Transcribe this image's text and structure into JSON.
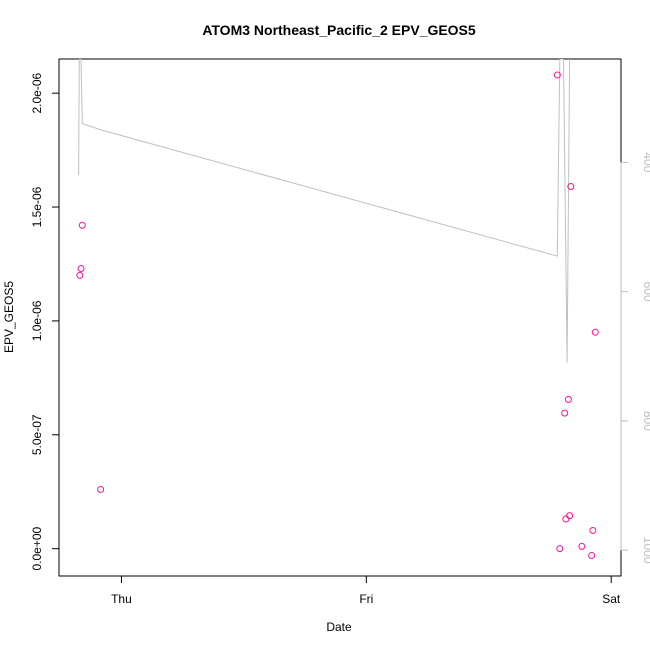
{
  "chart_data": {
    "type": "scatter",
    "title": "ATOM3 Northeast_Pacific_2 EPV_GEOS5",
    "xlabel": "Date",
    "ylabel": "EPV_GEOS5",
    "x_ticks": [
      {
        "label": "Thu",
        "value": 0
      },
      {
        "label": "Fri",
        "value": 1
      },
      {
        "label": "Sat",
        "value": 2
      }
    ],
    "x_range": [
      -0.255,
      2.04
    ],
    "y_ticks": [
      {
        "label": "0.0e+00",
        "value": 0
      },
      {
        "label": "5.0e-07",
        "value": 5e-07
      },
      {
        "label": "1.0e-06",
        "value": 1e-06
      },
      {
        "label": "1.5e-06",
        "value": 1.5e-06
      },
      {
        "label": "2.0e-06",
        "value": 2e-06
      }
    ],
    "y_range": [
      -1.2e-07,
      2.15e-06
    ],
    "y2_ticks": [
      {
        "label": "400",
        "value": 400
      },
      {
        "label": "600",
        "value": 600
      },
      {
        "label": "800",
        "value": 800
      },
      {
        "label": "1000",
        "value": 1000
      }
    ],
    "y2_range": [
      1040,
      240
    ],
    "point_color": "#ff1493",
    "line_color": "#c0c0c0",
    "series": [
      {
        "values": [
          {
            "x": -0.17,
            "y": 1.2e-06
          },
          {
            "x": -0.165,
            "y": 1.23e-06
          },
          {
            "x": -0.16,
            "y": 1.42e-06
          },
          {
            "x": -0.085,
            "y": 2.6e-07
          },
          {
            "x": 1.78,
            "y": 2.08e-06
          },
          {
            "x": 1.79,
            "y": 0.0
          },
          {
            "x": 1.81,
            "y": 5.95e-07
          },
          {
            "x": 1.815,
            "y": 1.3e-07
          },
          {
            "x": 1.825,
            "y": 6.55e-07
          },
          {
            "x": 1.83,
            "y": 1.45e-07
          },
          {
            "x": 1.835,
            "y": 1.59e-06
          },
          {
            "x": 1.88,
            "y": 1e-08
          },
          {
            "x": 1.92,
            "y": -3e-08
          },
          {
            "x": 1.925,
            "y": 8e-08
          },
          {
            "x": 1.935,
            "y": 9.5e-07
          }
        ]
      },
      {
        "axis": "right",
        "values": [
          {
            "x": -0.175,
            "y": 420
          },
          {
            "x": -0.172,
            "y": 240
          },
          {
            "x": -0.165,
            "y": 240
          },
          {
            "x": -0.16,
            "y": 340
          },
          {
            "x": -0.08,
            "y": 350
          },
          {
            "x": 1.78,
            "y": 545
          },
          {
            "x": 1.79,
            "y": 240
          },
          {
            "x": 1.805,
            "y": 240
          },
          {
            "x": 1.82,
            "y": 710
          },
          {
            "x": 1.83,
            "y": 240
          }
        ]
      }
    ]
  }
}
